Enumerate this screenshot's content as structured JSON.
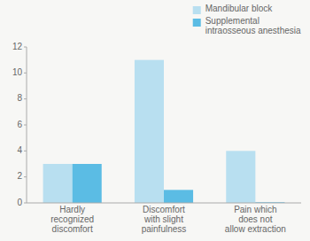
{
  "chart_data": {
    "type": "bar",
    "categories": [
      "Hardly\nrecognized\ndiscomfort",
      "Discomfort\nwith slight\npainfulness",
      "Pain which\ndoes not\nallow extraction"
    ],
    "series": [
      {
        "name": "Mandibular block",
        "color": "#b8dff0",
        "values": [
          3,
          11,
          4
        ]
      },
      {
        "name": "Supplemental\nintraosseous anesthesia",
        "color": "#5bbce4",
        "values": [
          3,
          1,
          0.05
        ]
      }
    ],
    "ylim": [
      0,
      12
    ],
    "yticks": [
      0,
      2,
      4,
      6,
      8,
      10,
      12
    ],
    "grid": false,
    "legend": "upper right"
  }
}
